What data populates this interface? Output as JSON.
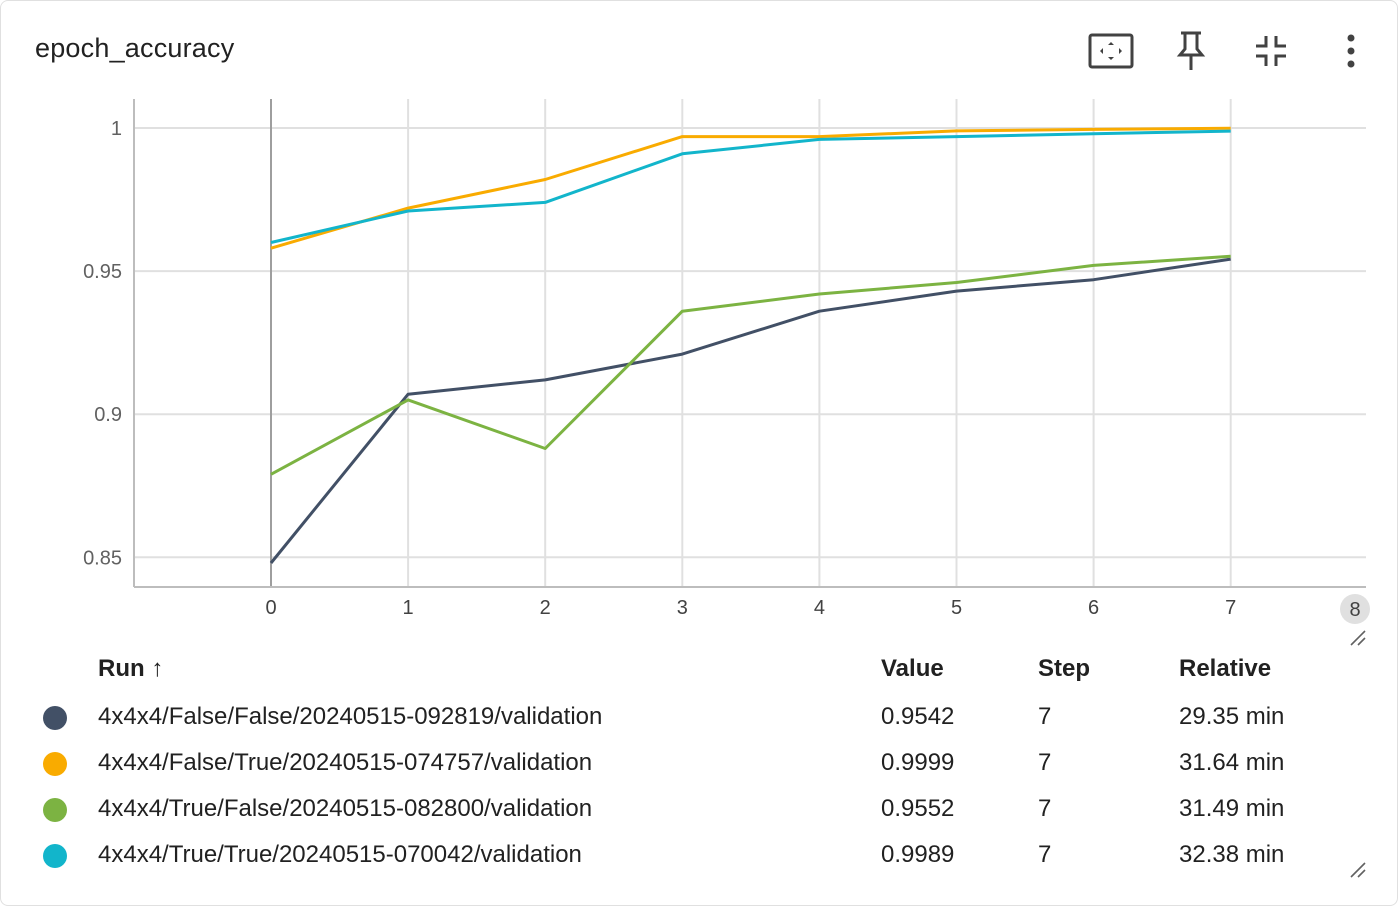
{
  "card": {
    "title": "epoch_accuracy"
  },
  "toolbar": {
    "icons": [
      "fit-to-data-icon",
      "pin-icon",
      "collapse-icon",
      "more-vert-icon"
    ]
  },
  "chart_data": {
    "type": "line",
    "x_ticks": [
      0,
      1,
      2,
      3,
      4,
      5,
      6,
      7,
      8
    ],
    "y_ticks": [
      0.85,
      0.9,
      0.95,
      1
    ],
    "y_tick_labels": [
      "0.85",
      "0.9",
      "0.95",
      "1"
    ],
    "xlim": [
      -1,
      8.1
    ],
    "ylim": [
      0.84,
      1.01
    ],
    "grid": true,
    "series": [
      {
        "name": "4x4x4/False/False/20240515-092819/validation",
        "color": "#425066",
        "x": [
          0,
          1,
          2,
          3,
          4,
          5,
          6,
          7
        ],
        "y": [
          0.848,
          0.907,
          0.912,
          0.921,
          0.936,
          0.943,
          0.947,
          0.9542
        ]
      },
      {
        "name": "4x4x4/False/True/20240515-074757/validation",
        "color": "#f9ab00",
        "x": [
          0,
          1,
          2,
          3,
          4,
          5,
          6,
          7
        ],
        "y": [
          0.958,
          0.972,
          0.982,
          0.997,
          0.997,
          0.999,
          0.9995,
          0.9999
        ]
      },
      {
        "name": "4x4x4/True/False/20240515-082800/validation",
        "color": "#7cb342",
        "x": [
          0,
          1,
          2,
          3,
          4,
          5,
          6,
          7
        ],
        "y": [
          0.879,
          0.905,
          0.888,
          0.936,
          0.942,
          0.946,
          0.952,
          0.9552
        ]
      },
      {
        "name": "4x4x4/True/True/20240515-070042/validation",
        "color": "#12b5cb",
        "x": [
          0,
          1,
          2,
          3,
          4,
          5,
          6,
          7
        ],
        "y": [
          0.96,
          0.971,
          0.974,
          0.991,
          0.996,
          0.997,
          0.998,
          0.9989
        ]
      }
    ]
  },
  "table": {
    "headers": {
      "run": "Run ↑",
      "value": "Value",
      "step": "Step",
      "relative": "Relative"
    },
    "rows": [
      {
        "color": "#425066",
        "run": "4x4x4/False/False/20240515-092819/validation",
        "value": "0.9542",
        "step": "7",
        "relative": "29.35 min"
      },
      {
        "color": "#f9ab00",
        "run": "4x4x4/False/True/20240515-074757/validation",
        "value": "0.9999",
        "step": "7",
        "relative": "31.64 min"
      },
      {
        "color": "#7cb342",
        "run": "4x4x4/True/False/20240515-082800/validation",
        "value": "0.9552",
        "step": "7",
        "relative": "31.49 min"
      },
      {
        "color": "#12b5cb",
        "run": "4x4x4/True/True/20240515-070042/validation",
        "value": "0.9989",
        "step": "7",
        "relative": "32.38 min"
      }
    ]
  }
}
